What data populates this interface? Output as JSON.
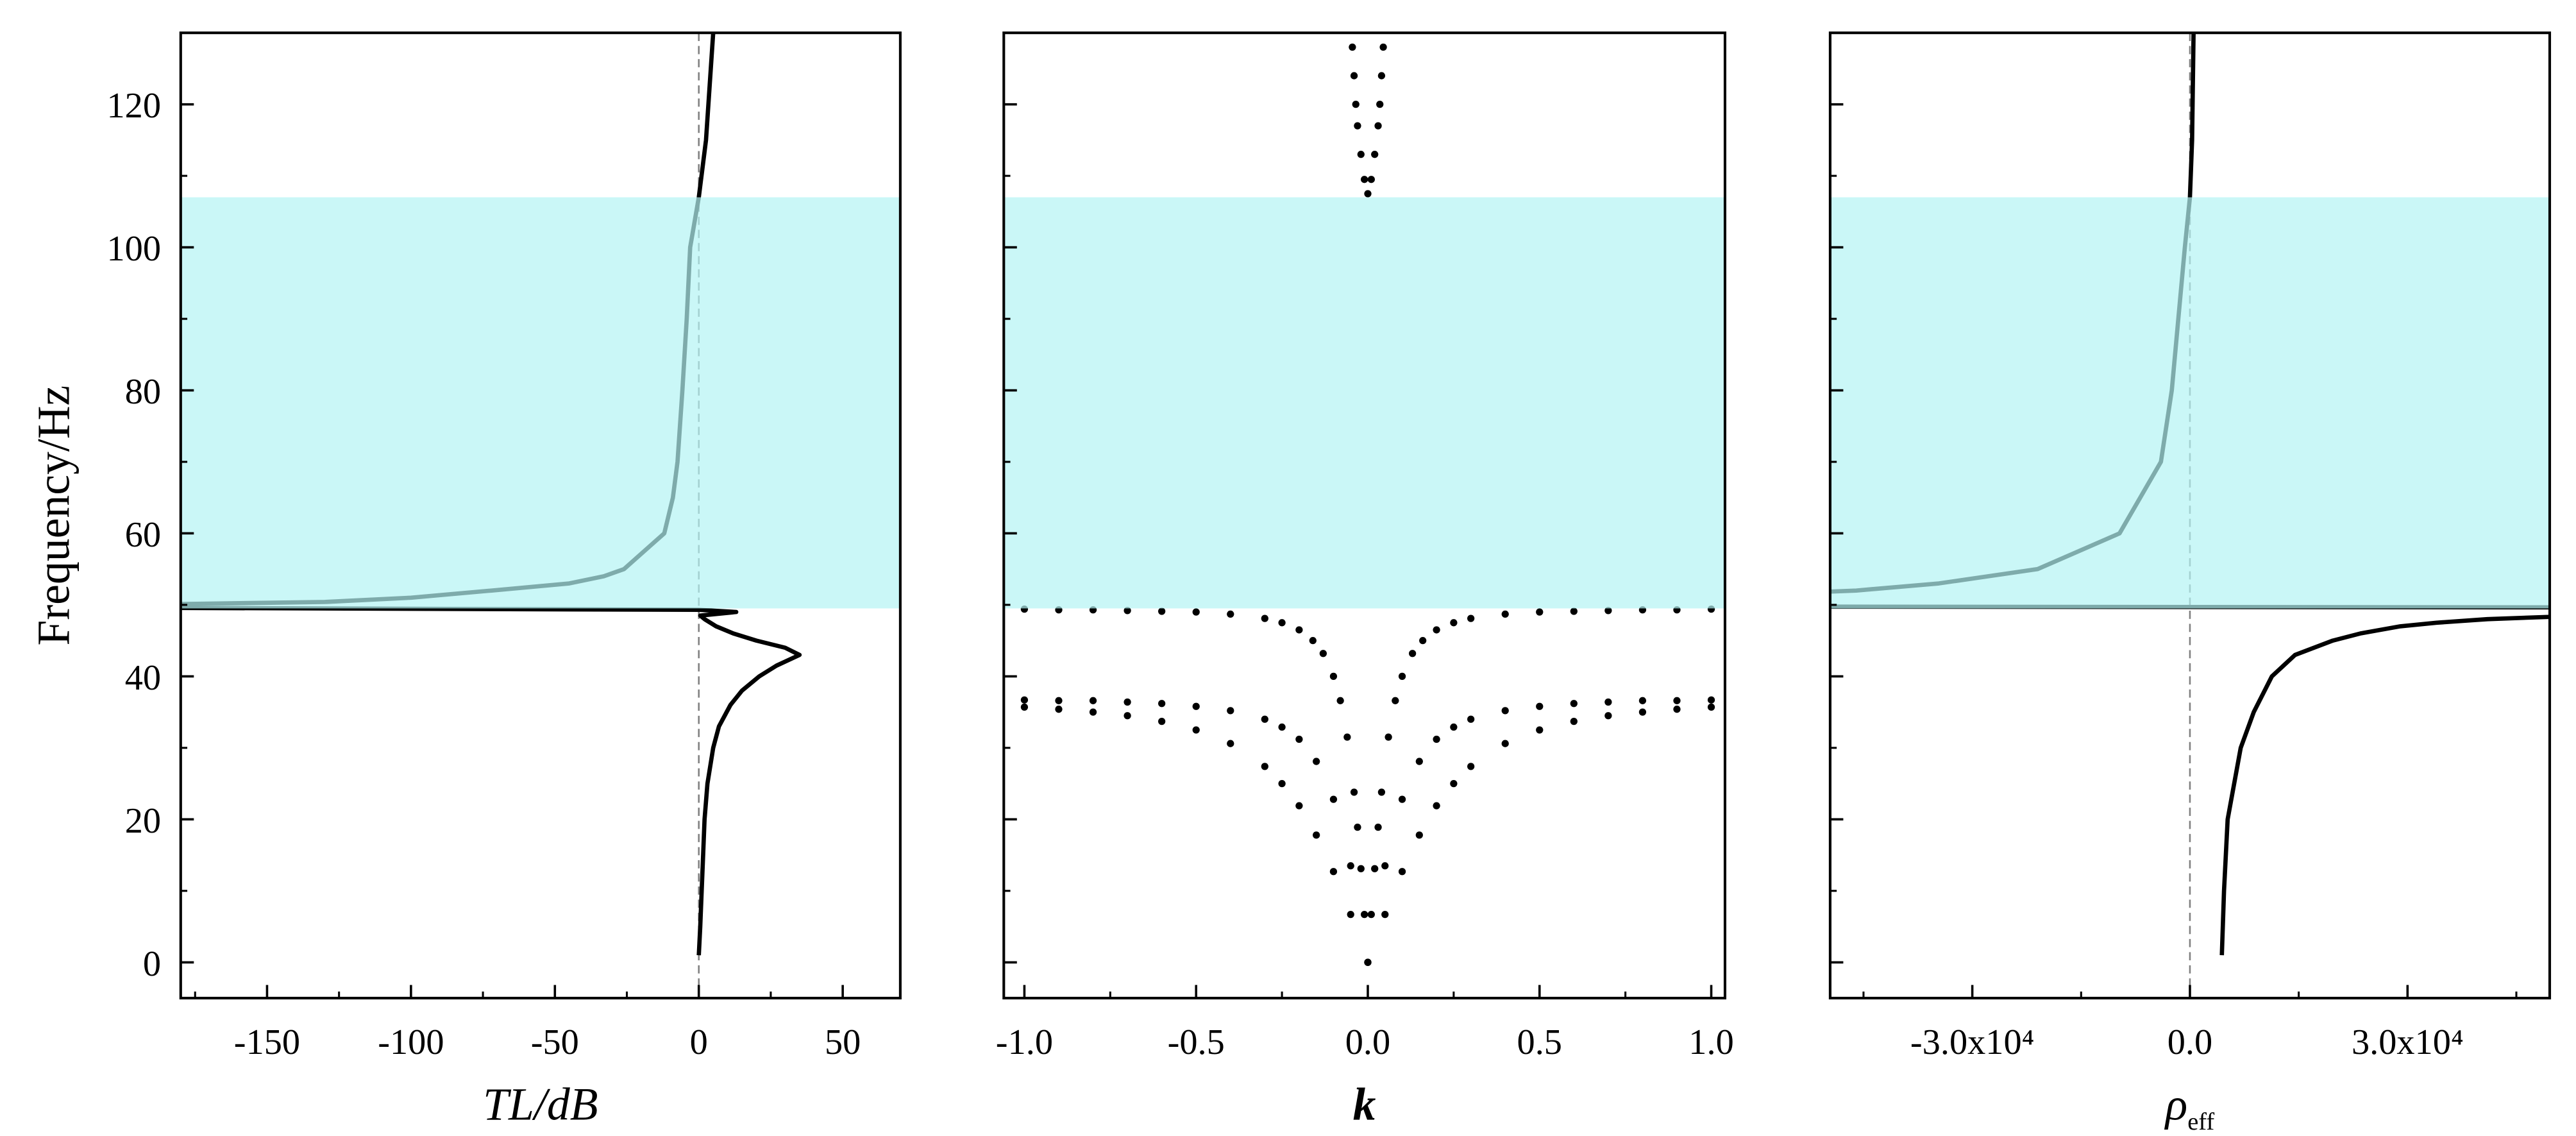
{
  "chart_data": [
    {
      "type": "line",
      "ylabel": "Frequency/Hz",
      "xlabel": "TL/dB",
      "xlim": [
        -180,
        70
      ],
      "ylim": [
        -5,
        130
      ],
      "xticks": [
        -150,
        -100,
        -50,
        0,
        50
      ],
      "xminor": [
        -175,
        -125,
        -75,
        -25,
        25
      ],
      "yticks": [
        0,
        20,
        40,
        60,
        80,
        100,
        120
      ],
      "yminor": [
        10,
        30,
        50,
        70,
        90,
        110
      ],
      "ytick_labels": true,
      "vline": 0,
      "vline_color": "#808080",
      "band": {
        "y": [
          49.5,
          107
        ],
        "color": "#b4f3f3",
        "opacity": 0.7
      },
      "series": [
        {
          "color": "#000000",
          "x": [
            0,
            0.5,
            1,
            1.5,
            2,
            3,
            5,
            7,
            11,
            15,
            21,
            27,
            35,
            30,
            20,
            12,
            6,
            2,
            0.5,
            13,
            0,
            -200,
            -200,
            -130,
            -100,
            -72,
            -45,
            -33,
            -26,
            -12,
            -9,
            -7.4,
            -5.7,
            -4.2,
            -3,
            0,
            2.5,
            5
          ],
          "y": [
            1,
            5,
            10,
            15,
            20,
            25,
            30,
            33,
            36,
            38,
            40,
            41.5,
            43,
            44,
            45,
            46,
            47,
            48,
            48.5,
            49,
            49.3,
            49.6,
            50,
            50.4,
            51,
            52,
            53,
            54,
            55,
            60,
            65,
            70,
            80,
            90,
            100,
            107,
            115,
            130
          ]
        }
      ]
    },
    {
      "type": "scatter",
      "xlabel": "k",
      "xlim": [
        -1.06,
        1.04
      ],
      "ylim": [
        -5,
        130
      ],
      "xticks": [
        {
          "value": -1,
          "label": "-1.0"
        },
        {
          "value": -0.5,
          "label": "-0.5"
        },
        {
          "value": 0,
          "label": "0.0"
        },
        {
          "value": 0.5,
          "label": "0.5"
        },
        {
          "value": 1,
          "label": "1.0"
        }
      ],
      "xminor": [
        -0.75,
        -0.25,
        0.25,
        0.75
      ],
      "yticks": [
        0,
        20,
        40,
        60,
        80,
        100,
        120
      ],
      "yminor": [
        10,
        30,
        50,
        70,
        90,
        110
      ],
      "ytick_labels": false,
      "band": {
        "y": [
          49.5,
          107
        ],
        "color": "#b4f3f3",
        "opacity": 0.7
      },
      "series": [
        {
          "color": "#000000",
          "x": [
            -1,
            -0.9,
            -0.8,
            -0.7,
            -0.6,
            -0.5,
            -0.4,
            -0.3,
            -0.25,
            -0.2,
            -0.16,
            -0.13,
            -0.1,
            -0.08,
            -0.06,
            -0.04,
            -0.03,
            -0.02,
            -0.01,
            0,
            0.01,
            0.02,
            0.03,
            0.04,
            0.06,
            0.08,
            0.1,
            0.13,
            0.16,
            0.2,
            0.25,
            0.3,
            0.4,
            0.5,
            0.6,
            0.7,
            0.8,
            0.9,
            1
          ],
          "y": [
            49.4,
            49.3,
            49.3,
            49.2,
            49.1,
            49,
            48.7,
            48.1,
            47.5,
            46.5,
            45,
            43.2,
            40,
            36.6,
            31.5,
            23.8,
            18.9,
            13.1,
            6.7,
            0,
            6.7,
            13.1,
            18.9,
            23.8,
            31.5,
            36.6,
            40,
            43.2,
            45,
            46.5,
            47.5,
            48.1,
            48.7,
            49,
            49.1,
            49.2,
            49.3,
            49.3,
            49.4
          ]
        },
        {
          "color": "#000000",
          "x": [
            -1,
            -0.9,
            -0.8,
            -0.7,
            -0.6,
            -0.5,
            -0.4,
            -0.3,
            -0.25,
            -0.2,
            -0.15,
            -0.1,
            -0.05,
            0,
            0.05,
            0.1,
            0.15,
            0.2,
            0.25,
            0.3,
            0.4,
            0.5,
            0.6,
            0.7,
            0.8,
            0.9,
            1
          ],
          "y": [
            35.7,
            35.4,
            35,
            34.5,
            33.7,
            32.5,
            30.6,
            27.4,
            25,
            21.9,
            17.8,
            12.7,
            6.7,
            0,
            6.7,
            12.7,
            17.8,
            21.9,
            25,
            27.4,
            30.6,
            32.5,
            33.7,
            34.5,
            35,
            35.4,
            35.7
          ]
        },
        {
          "color": "#000000",
          "x": [
            -1,
            -0.9,
            -0.8,
            -0.7,
            -0.6,
            -0.5,
            -0.4,
            -0.3,
            -0.25,
            -0.2,
            -0.15,
            -0.1,
            -0.05,
            0,
            0.05,
            0.1,
            0.15,
            0.2,
            0.25,
            0.3,
            0.4,
            0.5,
            0.6,
            0.7,
            0.8,
            0.9,
            1
          ],
          "y": [
            36.7,
            36.6,
            36.6,
            36.4,
            36.2,
            35.8,
            35.2,
            34,
            32.9,
            31.2,
            28.1,
            22.8,
            13.5,
            0,
            13.5,
            22.8,
            28.1,
            31.2,
            32.9,
            34,
            35.2,
            35.8,
            36.2,
            36.4,
            36.6,
            36.6,
            36.7
          ]
        },
        {
          "color": "#000000",
          "x": [
            -0.045,
            -0.04,
            -0.035,
            -0.03,
            -0.02,
            -0.01,
            0,
            0.01,
            0.02,
            0.03,
            0.035,
            0.04,
            0.045
          ],
          "y": [
            128,
            124,
            120,
            117,
            113,
            109.5,
            107.5,
            109.5,
            113,
            117,
            120,
            124,
            128
          ]
        }
      ]
    },
    {
      "type": "line",
      "xlabel": "ρ",
      "xlabel_sub": "eff",
      "xlim": [
        -49600,
        49600
      ],
      "ylim": [
        -5,
        130
      ],
      "xticks": [
        {
          "value": -30000,
          "label": "-3.0x10⁴"
        },
        {
          "value": 0,
          "label": "0.0"
        },
        {
          "value": 30000,
          "label": "3.0x10⁴"
        }
      ],
      "xminor": [
        -45000,
        -15000,
        15000,
        45000
      ],
      "yticks": [
        0,
        20,
        40,
        60,
        80,
        100,
        120
      ],
      "yminor": [
        10,
        30,
        50,
        70,
        90,
        110
      ],
      "ytick_labels": false,
      "vline": 0,
      "vline_color": "#808080",
      "band": {
        "y": [
          49.5,
          107
        ],
        "color": "#b4f3f3",
        "opacity": 0.7
      },
      "series": [
        {
          "color": "#000000",
          "x": [
            4400,
            4700,
            5200,
            7000,
            8800,
            11300,
            14500,
            19700,
            23500,
            29000,
            34000,
            41000,
            49000,
            100000,
            -100000,
            -46000,
            -34600,
            -21000,
            -9700,
            -4000,
            -2500,
            -700,
            0,
            300,
            500
          ],
          "y": [
            1,
            10,
            20,
            30,
            35,
            40,
            43,
            45,
            46,
            47,
            47.5,
            48,
            48.3,
            49.6,
            49.8,
            52,
            53,
            55,
            60,
            70,
            80,
            100,
            107,
            115,
            130
          ]
        }
      ]
    }
  ]
}
